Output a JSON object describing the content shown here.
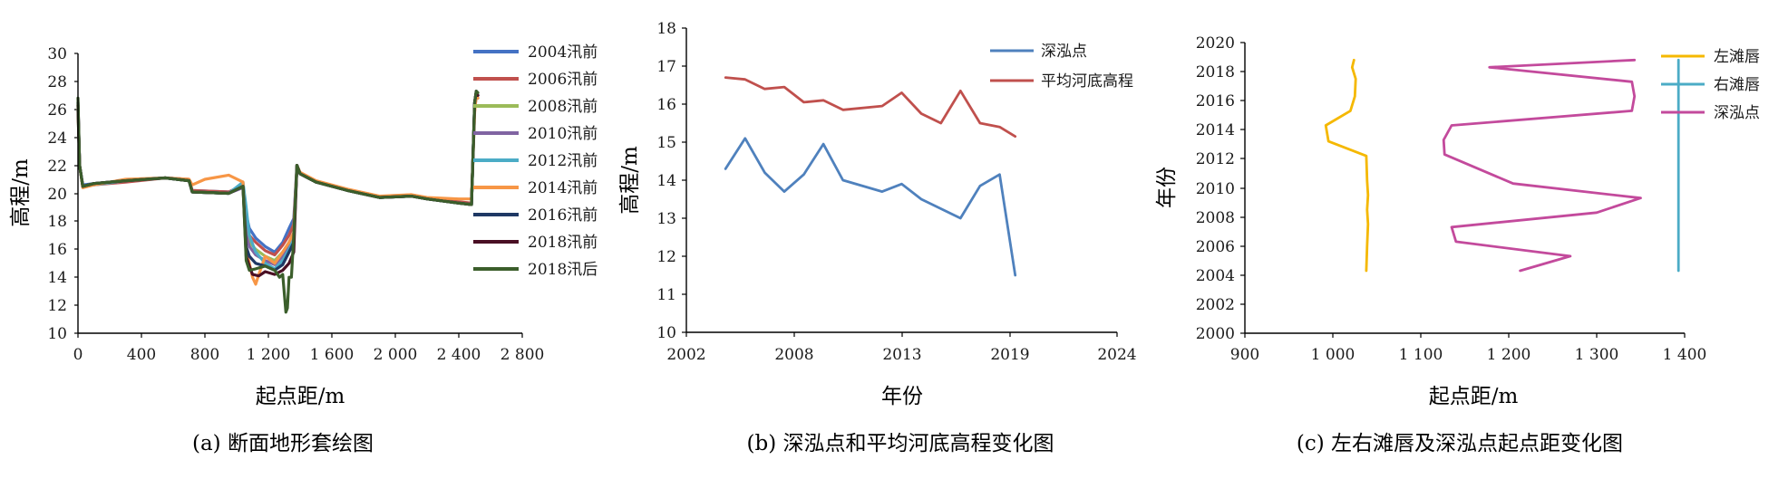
{
  "chart_data": [
    {
      "type": "line",
      "title": "",
      "caption": "(a) 断面地形套绘图",
      "xlabel": "起点距/m",
      "ylabel": "高程/m",
      "xlim": [
        0,
        2800
      ],
      "ylim": [
        10,
        30
      ],
      "xticks": [
        0,
        400,
        800,
        1200,
        1600,
        2000,
        2400,
        2800
      ],
      "xtick_labels": [
        "0",
        "400",
        "800",
        "1 200",
        "1 600",
        "2 000",
        "2 400",
        "2 800"
      ],
      "yticks": [
        10,
        12,
        14,
        16,
        18,
        20,
        22,
        24,
        26,
        28,
        30
      ],
      "ytick_labels": [
        "10",
        "12",
        "14",
        "16",
        "18",
        "20",
        "22",
        "24",
        "26",
        "28",
        "30"
      ],
      "legend_position": "right",
      "series": [
        {
          "name": "2004汛前",
          "color": "#4472c4",
          "x": [
            0,
            10,
            30,
            100,
            300,
            550,
            700,
            720,
            950,
            1040,
            1060,
            1080,
            1120,
            1180,
            1240,
            1290,
            1330,
            1360,
            1380,
            1400,
            1500,
            1700,
            1900,
            2100,
            2200,
            2400,
            2480,
            2500,
            2510,
            2520
          ],
          "y": [
            26,
            22,
            20.6,
            20.7,
            20.9,
            21.1,
            20.9,
            20.2,
            20.1,
            20.5,
            18.5,
            17.5,
            16.8,
            16.2,
            15.8,
            16.5,
            17.5,
            18.2,
            22,
            21.4,
            20.8,
            20.2,
            19.7,
            19.8,
            19.6,
            19.3,
            19.3,
            26.5,
            27.3,
            27
          ]
        },
        {
          "name": "2006汛前",
          "color": "#c0504d",
          "x": [
            0,
            10,
            30,
            100,
            300,
            550,
            700,
            720,
            950,
            1040,
            1060,
            1080,
            1120,
            1180,
            1240,
            1290,
            1330,
            1360,
            1380,
            1400,
            1500,
            1700,
            1900,
            2100,
            2200,
            2400,
            2480,
            2500,
            2510,
            2520
          ],
          "y": [
            26.3,
            22,
            20.5,
            20.6,
            20.8,
            21.1,
            21,
            20.2,
            20.1,
            20.6,
            18,
            17,
            16.5,
            15.9,
            15.6,
            16.3,
            17,
            17.8,
            22,
            21.4,
            20.8,
            20.2,
            19.7,
            19.9,
            19.6,
            19.4,
            19.3,
            26,
            27,
            26.8
          ]
        },
        {
          "name": "2008汛前",
          "color": "#9bbb59",
          "x": [
            0,
            10,
            30,
            100,
            300,
            550,
            700,
            720,
            950,
            1040,
            1060,
            1080,
            1120,
            1180,
            1240,
            1290,
            1330,
            1360,
            1380,
            1400,
            1500,
            1700,
            1900,
            2100,
            2200,
            2400,
            2480,
            2500,
            2510,
            2520
          ],
          "y": [
            26,
            22,
            20.5,
            20.7,
            20.9,
            21.1,
            20.9,
            20.1,
            20,
            20.5,
            17.5,
            16.5,
            16,
            15.5,
            15.2,
            15.8,
            16.5,
            17.2,
            22,
            21.4,
            20.8,
            20.2,
            19.7,
            19.8,
            19.6,
            19.3,
            19.2,
            26.2,
            27.2,
            27
          ]
        },
        {
          "name": "2010汛前",
          "color": "#8064a2",
          "x": [
            0,
            10,
            30,
            100,
            300,
            550,
            700,
            720,
            950,
            1040,
            1060,
            1080,
            1120,
            1180,
            1240,
            1290,
            1330,
            1360,
            1380,
            1400,
            1500,
            1700,
            1900,
            2100,
            2200,
            2400,
            2480,
            2500,
            2510,
            2520
          ],
          "y": [
            26.5,
            22,
            20.5,
            20.7,
            20.9,
            21.1,
            20.9,
            20.1,
            20,
            20.4,
            17,
            16.2,
            15.6,
            15.2,
            14.9,
            15.5,
            16.2,
            16.9,
            22,
            21.4,
            20.8,
            20.2,
            19.7,
            19.8,
            19.6,
            19.3,
            19.2,
            26.5,
            27.3,
            27
          ]
        },
        {
          "name": "2012汛前",
          "color": "#4bacc6",
          "x": [
            0,
            10,
            30,
            100,
            300,
            550,
            700,
            720,
            950,
            1040,
            1060,
            1080,
            1120,
            1180,
            1240,
            1290,
            1330,
            1360,
            1380,
            1400,
            1500,
            1700,
            1900,
            2100,
            2200,
            2400,
            2480,
            2500,
            2510,
            2520
          ],
          "y": [
            26,
            22,
            20.5,
            20.6,
            20.9,
            21.1,
            20.9,
            20.1,
            20,
            20.8,
            19,
            17,
            15.8,
            15,
            14.6,
            15.2,
            16,
            16.7,
            22,
            21.4,
            20.8,
            20.2,
            19.7,
            19.8,
            19.6,
            19.3,
            19.2,
            26,
            27,
            26.8
          ]
        },
        {
          "name": "2014汛前",
          "color": "#f79646",
          "x": [
            0,
            10,
            30,
            100,
            300,
            550,
            700,
            720,
            800,
            950,
            1040,
            1060,
            1080,
            1100,
            1120,
            1140,
            1180,
            1240,
            1290,
            1330,
            1360,
            1380,
            1400,
            1500,
            1700,
            1900,
            2100,
            2200,
            2400,
            2480,
            2500,
            2510,
            2520
          ],
          "y": [
            26,
            22,
            20.4,
            20.6,
            21,
            21.1,
            21,
            20.6,
            21,
            21.3,
            20.8,
            16,
            15,
            14,
            13.5,
            14.2,
            15.5,
            15,
            15.8,
            16.5,
            17.2,
            22,
            21.5,
            20.9,
            20.3,
            19.8,
            19.9,
            19.7,
            19.6,
            19.6,
            25.8,
            27,
            26.8
          ]
        },
        {
          "name": "2016汛前",
          "color": "#1f3864",
          "x": [
            0,
            10,
            30,
            100,
            300,
            550,
            700,
            720,
            950,
            1040,
            1060,
            1080,
            1120,
            1180,
            1240,
            1290,
            1330,
            1360,
            1380,
            1400,
            1500,
            1700,
            1900,
            2100,
            2200,
            2400,
            2480,
            2500,
            2510,
            2520
          ],
          "y": [
            26.5,
            22,
            20.5,
            20.7,
            20.9,
            21.1,
            20.9,
            20.1,
            20,
            20.5,
            16.2,
            15.5,
            15,
            14.8,
            14.5,
            14.9,
            15.8,
            16.5,
            22,
            21.4,
            20.8,
            20.2,
            19.7,
            19.8,
            19.6,
            19.3,
            19.2,
            26.5,
            27.3,
            27
          ]
        },
        {
          "name": "2018汛前",
          "color": "#4a0f24",
          "x": [
            0,
            10,
            30,
            100,
            300,
            550,
            700,
            720,
            950,
            1040,
            1060,
            1080,
            1100,
            1140,
            1180,
            1240,
            1290,
            1330,
            1360,
            1380,
            1400,
            1500,
            1700,
            1900,
            2100,
            2200,
            2400,
            2480,
            2500,
            2510,
            2520
          ],
          "y": [
            26.3,
            22,
            20.5,
            20.7,
            20.9,
            21.1,
            20.9,
            20.1,
            20,
            20.5,
            15.5,
            14.8,
            14.2,
            14.1,
            14.4,
            14.2,
            14.5,
            15,
            15.8,
            22,
            21.4,
            20.8,
            20.2,
            19.7,
            19.8,
            19.6,
            19.3,
            19.2,
            26.5,
            27.3,
            27
          ]
        },
        {
          "name": "2018汛后",
          "color": "#3b5e2b",
          "x": [
            0,
            10,
            30,
            100,
            300,
            550,
            700,
            720,
            950,
            1040,
            1060,
            1080,
            1120,
            1180,
            1240,
            1270,
            1290,
            1310,
            1320,
            1330,
            1345,
            1360,
            1380,
            1400,
            1500,
            1700,
            1900,
            2100,
            2200,
            2400,
            2480,
            2500,
            2510,
            2520
          ],
          "y": [
            26.8,
            22,
            20.5,
            20.7,
            20.9,
            21.1,
            20.9,
            20.1,
            20,
            20.5,
            15.2,
            14.5,
            14.6,
            14.8,
            14.5,
            14,
            14.2,
            11.5,
            11.8,
            14,
            14,
            17,
            22,
            21.4,
            20.8,
            20.2,
            19.7,
            19.8,
            19.6,
            19.3,
            19.2,
            26.5,
            27.3,
            27.2
          ]
        }
      ]
    },
    {
      "type": "line",
      "title": "",
      "caption": "(b) 深泓点和平均河底高程变化图",
      "xlabel": "年份",
      "ylabel": "高程/m",
      "xlim": [
        2002,
        2024
      ],
      "ylim": [
        10,
        18
      ],
      "xticks": [
        2002,
        2008,
        2013,
        2019,
        2024
      ],
      "xtick_labels": [
        "2002",
        "2008",
        "2013",
        "2019",
        "2024"
      ],
      "yticks": [
        10,
        11,
        12,
        13,
        14,
        15,
        16,
        17,
        18
      ],
      "ytick_labels": [
        "10",
        "11",
        "12",
        "13",
        "14",
        "15",
        "16",
        "17",
        "18"
      ],
      "legend_position": "top-right",
      "series": [
        {
          "name": "深泓点",
          "color": "#4f81bd",
          "x": [
            2004,
            2005,
            2006,
            2007,
            2008,
            2009,
            2010,
            2012,
            2013,
            2014,
            2016,
            2017,
            2018,
            2018.8
          ],
          "y": [
            14.3,
            15.1,
            14.2,
            13.7,
            14.15,
            14.95,
            14,
            13.7,
            13.9,
            13.5,
            13,
            13.85,
            14.15,
            11.5
          ]
        },
        {
          "name": "平均河底高程",
          "color": "#c0504d",
          "x": [
            2004,
            2005,
            2006,
            2007,
            2008,
            2009,
            2010,
            2012,
            2013,
            2014,
            2015,
            2016,
            2017,
            2018,
            2018.8
          ],
          "y": [
            16.7,
            16.65,
            16.4,
            16.45,
            16.05,
            16.1,
            15.85,
            15.95,
            16.3,
            15.75,
            15.5,
            16.35,
            15.5,
            15.4,
            15.15
          ]
        }
      ]
    },
    {
      "type": "line",
      "title": "",
      "caption": "(c) 左右滩唇及深泓点起点距变化图",
      "xlabel": "起点距/m",
      "ylabel": "年份",
      "xlim": [
        900,
        1400
      ],
      "ylim": [
        2000,
        2020
      ],
      "xticks": [
        900,
        1000,
        1100,
        1200,
        1300,
        1400
      ],
      "xtick_labels": [
        "900",
        "1 000",
        "1 100",
        "1 200",
        "1 300",
        "1 400"
      ],
      "yticks": [
        2000,
        2002,
        2004,
        2006,
        2008,
        2010,
        2012,
        2014,
        2016,
        2018,
        2020
      ],
      "ytick_labels": [
        "2000",
        "2002",
        "2004",
        "2006",
        "2008",
        "2010",
        "2012",
        "2014",
        "2016",
        "2018",
        "2020"
      ],
      "legend_position": "top-right",
      "series": [
        {
          "name": "左滩唇",
          "color": "#f5b800",
          "x": [
            1038,
            1039,
            1040,
            1039,
            1040,
            1039,
            1038,
            995,
            992,
            1020,
            1025,
            1026,
            1022,
            1024
          ],
          "y": [
            2004.3,
            2006,
            2007.5,
            2008.5,
            2009.5,
            2010.5,
            2012.2,
            2013.2,
            2014.3,
            2015.3,
            2016.3,
            2017.5,
            2018.3,
            2018.8
          ]
        },
        {
          "name": "右滩唇",
          "color": "#4bacc6",
          "x": [
            1393,
            1393,
            1393,
            1393,
            1393,
            1393
          ],
          "y": [
            2004.3,
            2008,
            2012,
            2014.3,
            2016.3,
            2018.8
          ]
        },
        {
          "name": "深泓点",
          "color": "#c34a9c",
          "x": [
            1213,
            1270,
            1140,
            1135,
            1300,
            1350,
            1205,
            1127,
            1126,
            1135,
            1340,
            1343,
            1340,
            1178,
            1343
          ],
          "y": [
            2004.3,
            2005.3,
            2006.3,
            2007.3,
            2008.3,
            2009.3,
            2010.3,
            2012.3,
            2013.3,
            2014.3,
            2015.3,
            2016.3,
            2017.3,
            2018.3,
            2018.8
          ]
        }
      ]
    }
  ]
}
